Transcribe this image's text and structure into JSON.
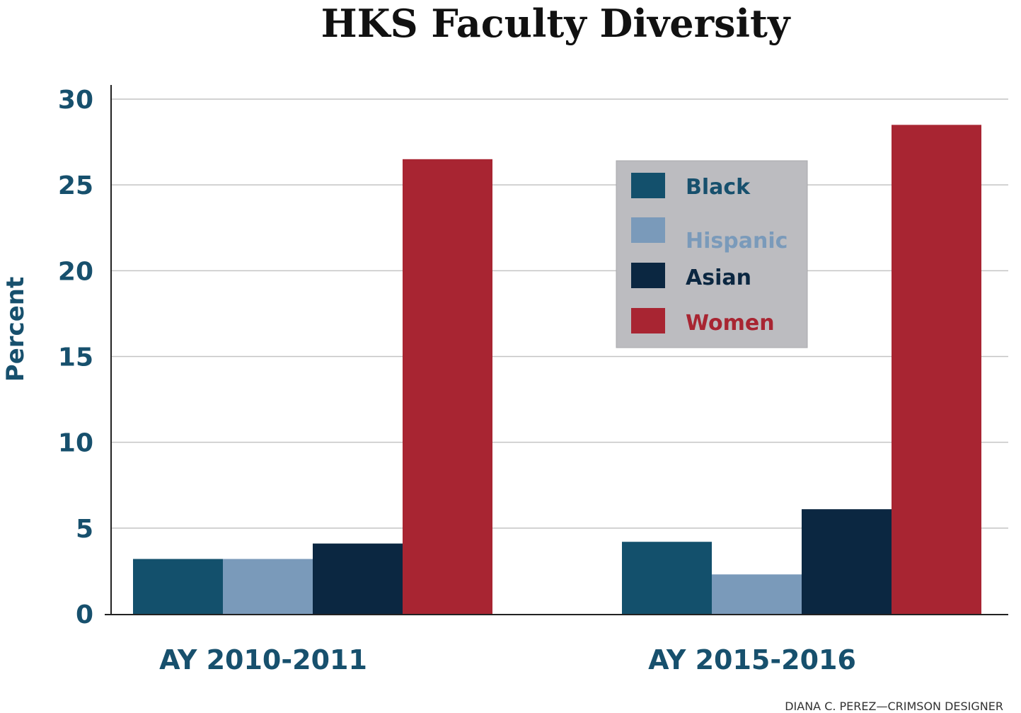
{
  "chart_data": {
    "type": "bar",
    "title": "HKS Faculty Diversity",
    "ylabel": "Percent",
    "xlabel": "",
    "ylim": [
      0,
      30
    ],
    "yticks": [
      0,
      5,
      10,
      15,
      20,
      25,
      30
    ],
    "grid": true,
    "legend_placement": "top-right",
    "categories": [
      "AY 2010-2011",
      "AY 2015-2016"
    ],
    "series": [
      {
        "name": "Black",
        "color": "#13506c",
        "values": [
          3.2,
          4.2
        ]
      },
      {
        "name": "Hispanic",
        "color": "#7a9aba",
        "values": [
          3.2,
          2.3
        ]
      },
      {
        "name": "Asian",
        "color": "#0b2741",
        "values": [
          4.1,
          6.1
        ]
      },
      {
        "name": "Women",
        "color": "#a82532",
        "values": [
          26.5,
          28.5
        ]
      }
    ],
    "legend_colors_text": {
      "Black": "#17506d",
      "Hispanic": "#7a9aba",
      "Asian": "#0b2741",
      "Women": "#a82532"
    },
    "legend_background": "#bcbcc0",
    "credit": "DIANA C. PEREZ—CRIMSON DESIGNER"
  }
}
